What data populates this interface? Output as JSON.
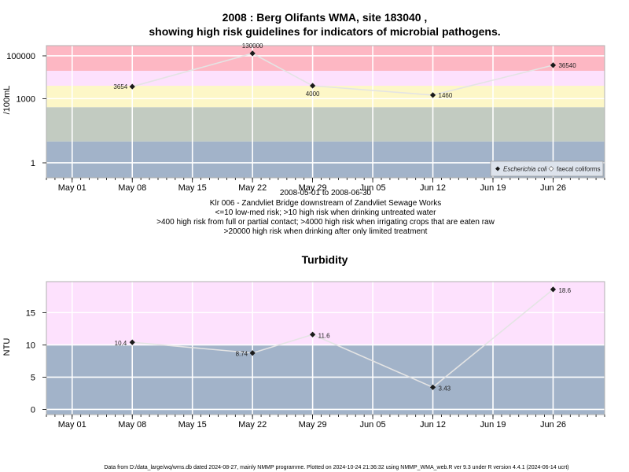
{
  "chart_data": [
    {
      "type": "line",
      "title_line1": "2008 : Berg Olifants WMA, site 183040 ,",
      "title_line2": "showing high risk guidelines for indicators of microbial pathogens.",
      "ylabel": "/100mL",
      "yscale": "log",
      "ylim": [
        0.2,
        300000
      ],
      "yticks": [
        1,
        1000,
        100000
      ],
      "ytick_labels": [
        "1",
        "1000",
        "100000"
      ],
      "xlim": [
        "2008-04-28",
        "2008-07-02"
      ],
      "xticks": [
        "2008-05-01",
        "2008-05-08",
        "2008-05-15",
        "2008-05-22",
        "2008-05-29",
        "2008-06-05",
        "2008-06-12",
        "2008-06-19",
        "2008-06-26"
      ],
      "xtick_labels": [
        "May 01",
        "May 08",
        "May 15",
        "May 22",
        "May 29",
        "Jun 05",
        "Jun 12",
        "Jun 19",
        "Jun 26"
      ],
      "bands": [
        {
          "from": 0.2,
          "to": 10,
          "color": "#a2b3c9"
        },
        {
          "from": 10,
          "to": 400,
          "color": "#c2cbc1"
        },
        {
          "from": 400,
          "to": 4000,
          "color": "#fdf7c7"
        },
        {
          "from": 4000,
          "to": 20000,
          "color": "#fde1fd"
        },
        {
          "from": 20000,
          "to": 300000,
          "color": "#fdb7c3"
        }
      ],
      "series": [
        {
          "name": "Escherichia coli",
          "x": [
            "2008-05-08",
            "2008-05-22",
            "2008-05-29",
            "2008-06-12",
            "2008-06-26"
          ],
          "values": [
            3654,
            130000,
            4000,
            1460,
            36540
          ],
          "labels": [
            "3654",
            "130000",
            "4000",
            "1460",
            "36540"
          ]
        }
      ],
      "legend": {
        "position": "bottom-right",
        "entries": [
          "Escherichia coli",
          "faecal coliforms"
        ]
      },
      "subtitle_lines": [
        "2008-05-01 to 2008-06-30",
        "Klr 006 - Zandvliet Bridge downstream of Zandvliet Sewage Works",
        "<=10 low-med risk; >10 high risk when drinking untreated water",
        ">400 high risk from full or partial contact; >4000 high risk when irrigating crops that are eaten raw",
        ">20000 high risk when drinking after only limited treatment"
      ]
    },
    {
      "type": "line",
      "title": "Turbidity",
      "ylabel": "NTU",
      "ylim": [
        -0.8,
        19.8
      ],
      "yticks": [
        0,
        5,
        10,
        15
      ],
      "ytick_labels": [
        "0",
        "5",
        "10",
        "15"
      ],
      "xlim": [
        "2008-04-28",
        "2008-07-02"
      ],
      "xticks": [
        "2008-05-01",
        "2008-05-08",
        "2008-05-15",
        "2008-05-22",
        "2008-05-29",
        "2008-06-05",
        "2008-06-12",
        "2008-06-19",
        "2008-06-26"
      ],
      "xtick_labels": [
        "May 01",
        "May 08",
        "May 15",
        "May 22",
        "May 29",
        "Jun 05",
        "Jun 12",
        "Jun 19",
        "Jun 26"
      ],
      "bands": [
        {
          "from": -0.8,
          "to": 10,
          "color": "#a2b3c9"
        },
        {
          "from": 10,
          "to": 19.8,
          "color": "#fde1fd"
        }
      ],
      "series": [
        {
          "name": "",
          "x": [
            "2008-05-08",
            "2008-05-22",
            "2008-05-29",
            "2008-06-12",
            "2008-06-26"
          ],
          "values": [
            10.4,
            8.74,
            11.6,
            3.43,
            18.6
          ],
          "labels": [
            "10.4",
            "8.74",
            "11.6",
            "3.43",
            "18.6"
          ]
        }
      ]
    }
  ],
  "footer": "Data from D:/data_large/wq/wms.db dated 2024-08-27, mainly NMMP programme. Plotted on 2024-10-24 21:36:32 using NMMP_WMA_web.R ver 9.3 under R version 4.4.1 (2024-06-14 ucrt)"
}
